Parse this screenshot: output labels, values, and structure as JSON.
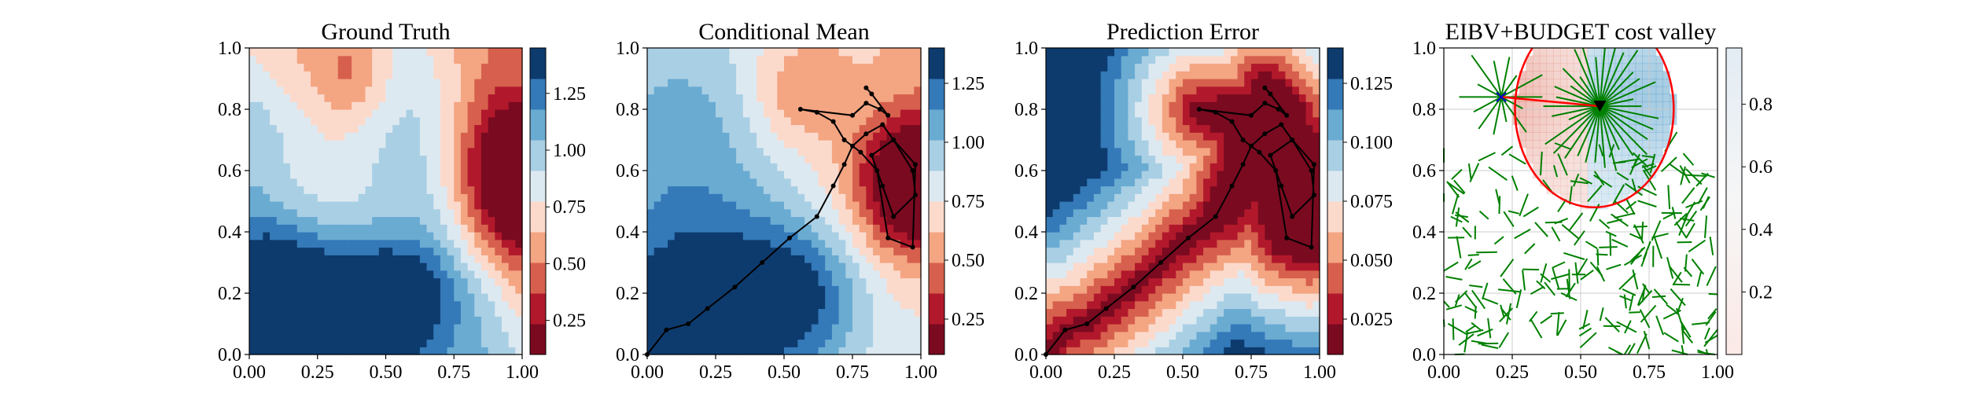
{
  "chart_data": [
    {
      "type": "heatmap",
      "title": "Ground Truth",
      "xlim": [
        0,
        1
      ],
      "ylim": [
        0,
        1
      ],
      "x_ticks": [
        "0.00",
        "0.25",
        "0.50",
        "0.75",
        "1.00"
      ],
      "y_ticks": [
        "0.0",
        "0.2",
        "0.4",
        "0.6",
        "0.8",
        "1.0"
      ],
      "colormap": "RdBu (red = low, blue = high)",
      "colorbar": {
        "min": 0.1,
        "max": 1.45,
        "ticks": [
          "0.25",
          "0.50",
          "0.75",
          "1.00",
          "1.25"
        ]
      },
      "field_features": [
        {
          "kind": "low",
          "x": 0.95,
          "y": 0.55,
          "value": 0.15
        },
        {
          "kind": "low",
          "x": 0.4,
          "y": 0.98,
          "value": 0.7
        },
        {
          "kind": "high",
          "x": 0.3,
          "y": 0.0,
          "value": 1.4
        },
        {
          "kind": "high",
          "x": 0.5,
          "y": 0.22,
          "value": 1.35
        }
      ],
      "grid": false
    },
    {
      "type": "heatmap",
      "title": "Conditional Mean",
      "xlim": [
        0,
        1
      ],
      "ylim": [
        0,
        1
      ],
      "x_ticks": [
        "0.00",
        "0.25",
        "0.50",
        "0.75",
        "1.00"
      ],
      "y_ticks": [
        "0.0",
        "0.2",
        "0.4",
        "0.6",
        "0.8",
        "1.0"
      ],
      "colormap": "RdBu (red = low, blue = high)",
      "colorbar": {
        "min": 0.1,
        "max": 1.4,
        "ticks": [
          "0.25",
          "0.50",
          "0.75",
          "1.00",
          "1.25"
        ]
      },
      "field_features": [
        {
          "kind": "low",
          "x": 0.97,
          "y": 0.55,
          "value": 0.1
        },
        {
          "kind": "high",
          "x": 0.25,
          "y": 0.2,
          "value": 1.3
        },
        {
          "kind": "high",
          "x": 0.55,
          "y": 0.22,
          "value": 1.2
        }
      ],
      "trajectory": {
        "x": [
          0.0,
          0.07,
          0.15,
          0.22,
          0.32,
          0.42,
          0.52,
          0.62,
          0.68,
          0.72,
          0.75,
          0.8,
          0.86,
          0.9,
          0.97,
          0.98,
          0.9,
          0.86,
          0.82,
          0.9,
          0.98,
          0.97,
          0.88,
          0.84,
          0.78,
          0.72,
          0.68,
          0.62,
          0.56,
          0.75,
          0.8,
          0.85,
          0.88,
          0.82,
          0.8
        ],
        "y": [
          0.0,
          0.08,
          0.1,
          0.15,
          0.22,
          0.3,
          0.38,
          0.45,
          0.55,
          0.62,
          0.68,
          0.72,
          0.75,
          0.7,
          0.6,
          0.52,
          0.45,
          0.55,
          0.65,
          0.7,
          0.62,
          0.35,
          0.38,
          0.6,
          0.66,
          0.7,
          0.76,
          0.79,
          0.8,
          0.78,
          0.82,
          0.8,
          0.78,
          0.85,
          0.87
        ]
      },
      "grid": false
    },
    {
      "type": "heatmap",
      "title": "Prediction Error",
      "xlim": [
        0,
        1
      ],
      "ylim": [
        0,
        1
      ],
      "x_ticks": [
        "0.00",
        "0.25",
        "0.50",
        "0.75",
        "1.00"
      ],
      "y_ticks": [
        "0.0",
        "0.2",
        "0.4",
        "0.6",
        "0.8",
        "1.0"
      ],
      "colormap": "RdBu (red = low, blue = high)",
      "colorbar": {
        "min": 0.01,
        "max": 0.14,
        "ticks": [
          "0.025",
          "0.050",
          "0.075",
          "0.100",
          "0.125"
        ]
      },
      "field_features": [
        {
          "kind": "high",
          "x": 0.0,
          "y": 0.75,
          "value": 0.14
        },
        {
          "kind": "low",
          "x": 0.85,
          "y": 0.6,
          "value": 0.01
        },
        {
          "kind": "low",
          "x": 0.35,
          "y": 0.18,
          "value": 0.015
        }
      ],
      "trajectory": "same as Conditional Mean",
      "grid": false
    },
    {
      "type": "heatmap",
      "title": "EIBV+BUDGET cost valley",
      "xlim": [
        0,
        1
      ],
      "ylim": [
        0,
        1
      ],
      "x_ticks": [
        "0.00",
        "0.25",
        "0.50",
        "0.75",
        "1.00"
      ],
      "y_ticks": [
        "0.0",
        "0.2",
        "0.4",
        "0.6",
        "0.8",
        "1.0"
      ],
      "colorbar": {
        "min": 0.0,
        "max": 0.98,
        "ticks": [
          "0.2",
          "0.4",
          "0.6",
          "0.8"
        ]
      },
      "budget_ellipse": {
        "center": [
          0.55,
          0.8
        ],
        "rx": 0.29,
        "ry": 0.32,
        "color": "#ff0000"
      },
      "current_location": {
        "x": 0.57,
        "y": 0.81,
        "marker": "triangle-down"
      },
      "target_location": {
        "x": 0.21,
        "y": 0.84,
        "marker": "x",
        "color": "#0000cc"
      },
      "rrt_tree_color": "#008000",
      "grid": true
    }
  ]
}
